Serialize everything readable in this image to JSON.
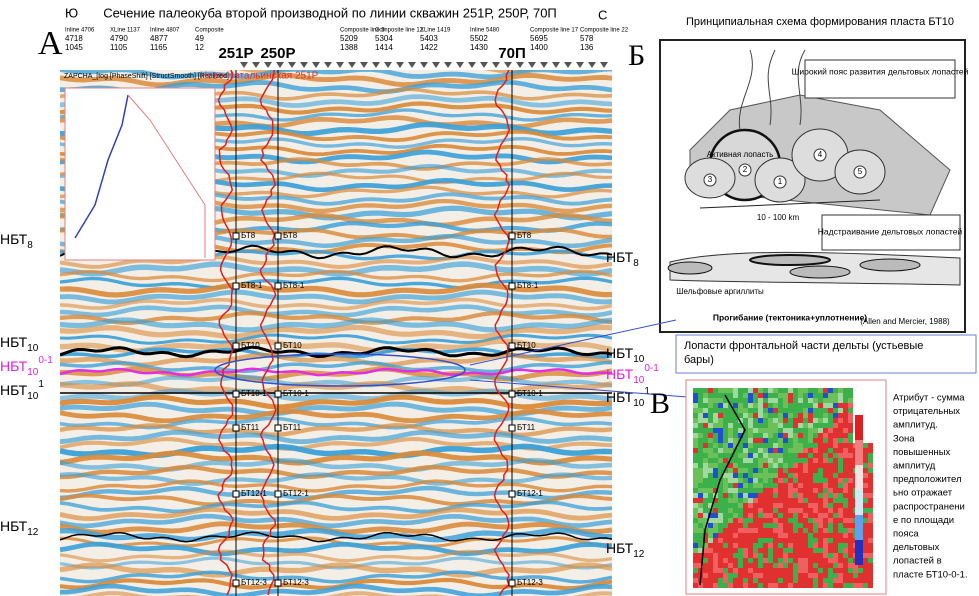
{
  "panel_a": {
    "letter": "А",
    "title": "Сечение палеокуба второй производной по линии скважин 251Р, 250Р, 70П",
    "south": "Ю",
    "north": "С",
    "header_columns": [
      [
        "Inline 4706",
        "4718",
        "1045"
      ],
      [
        "XLine 1137",
        "4790",
        "1105"
      ],
      [
        "Inline 4807",
        "4877",
        "1165"
      ],
      [
        "Composite",
        "49",
        "12"
      ],
      [
        "Composite line 5",
        "5209",
        "1388"
      ],
      [
        "Composite line 12",
        "5304",
        "1414"
      ],
      [
        "XLine 1419",
        "5403",
        "1422"
      ],
      [
        "Inline 5480",
        "5502",
        "1430"
      ],
      [
        "Composite line 17",
        "5695",
        "1400"
      ],
      [
        "Composite line 22",
        "578",
        "136"
      ]
    ],
    "toolbar": "ZAPCHA_[tog [PhaseShift] [StructSmooth] [Realized]",
    "well_title": "Ново-Натальинская 251Р",
    "wells": [
      "251Р",
      "250Р",
      "70П"
    ],
    "horizons": [
      {
        "base": "НБТ",
        "sub": "8"
      },
      {
        "base": "НБТ",
        "sub": "10"
      },
      {
        "base": "НБТ",
        "sub": "10",
        "sup": "0-1"
      },
      {
        "base": "НБТ",
        "sub": "10",
        "sup": "1"
      },
      {
        "base": "НБТ",
        "sub": "12"
      }
    ],
    "markers": [
      "БТ8",
      "БТ8-1",
      "БТ10",
      "БТ10-1",
      "БТ11",
      "БТ12-1",
      "БТ12-3"
    ]
  },
  "panel_b": {
    "letter": "Б",
    "title": "Принципиальная схема формирования пласта БТ10",
    "belt": "Широкий пояс развития дельтовых лопастей",
    "active": "Активная лопасть",
    "scale": "10 - 100 km",
    "stacking": "Надстраивание дельтовых лопастей",
    "shale": "Шельфовые аргиллиты",
    "subsidence": "Прогибание (тектоника+уплотнение)",
    "source": "(Allen and Mercier, 1988)",
    "lobes": [
      "1",
      "2",
      "3",
      "4",
      "5"
    ]
  },
  "callout": "Лопасти фронтальной части дельты (устьевые бары)",
  "panel_c": {
    "letter": "В",
    "caption": [
      "Атрибут - сумма",
      "отрицательных",
      "амплитуд.",
      "Зона",
      "повышенных",
      "амплитуд",
      "предположител",
      "ьно отражает",
      "распространени",
      "е по площади",
      "пояса",
      "дельтовых",
      "лопастей в",
      "пласте БТ10-0-1."
    ]
  }
}
